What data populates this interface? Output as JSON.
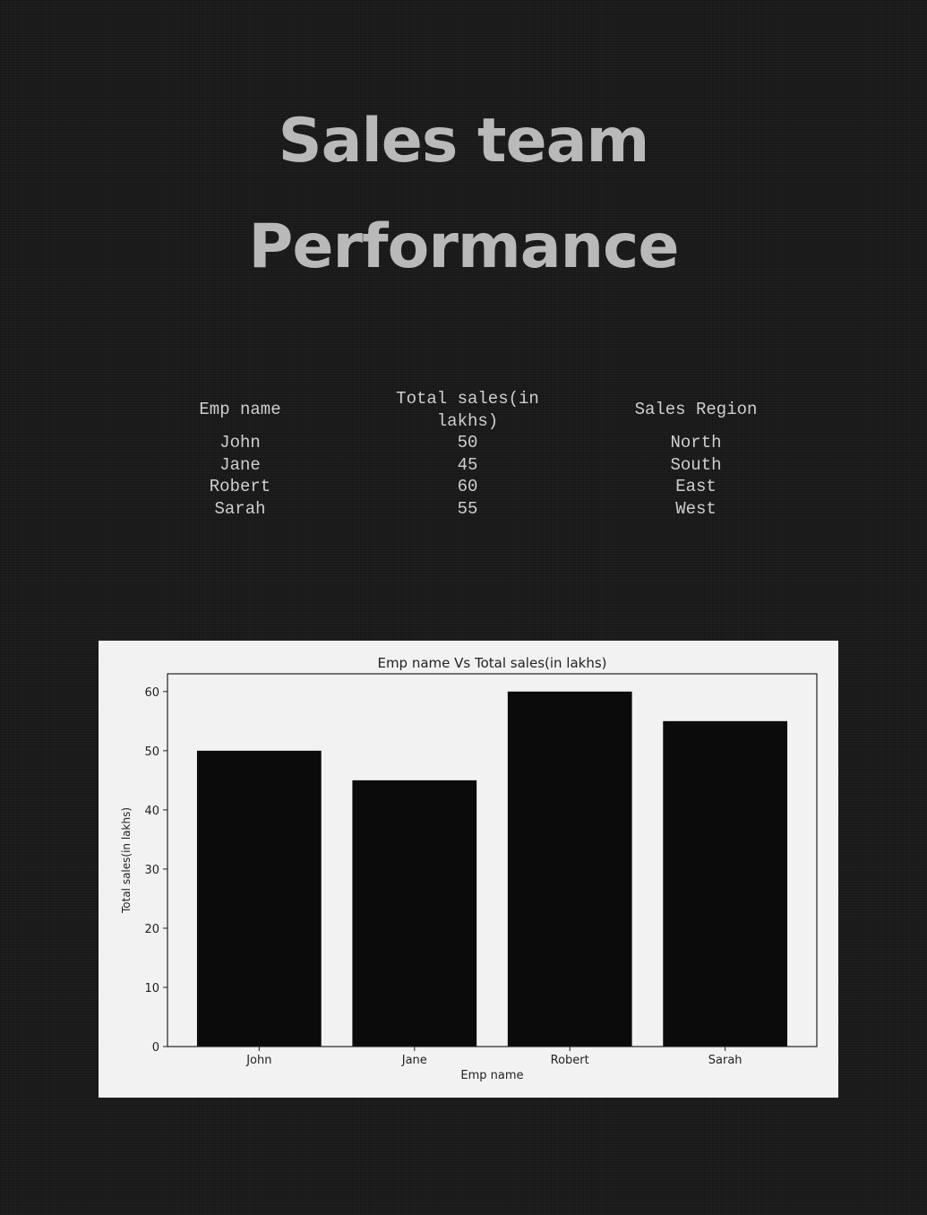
{
  "title": {
    "line1": "Sales team",
    "line2": "Performance"
  },
  "table": {
    "headers": [
      "Emp name",
      "Total sales(in",
      "lakhs)",
      "Sales Region"
    ],
    "rows": [
      [
        "John",
        "50",
        "North"
      ],
      [
        "Jane",
        "45",
        "South"
      ],
      [
        "Robert",
        "60",
        "East"
      ],
      [
        "Sarah",
        "55",
        "West"
      ]
    ]
  },
  "chart_data": {
    "type": "bar",
    "title": "Emp name Vs Total sales(in lakhs)",
    "xlabel": "Emp name",
    "ylabel": "Total sales(in lakhs)",
    "categories": [
      "John",
      "Jane",
      "Robert",
      "Sarah"
    ],
    "values": [
      50,
      45,
      60,
      55
    ],
    "ylim": [
      0,
      63
    ],
    "yticks": [
      0,
      10,
      20,
      30,
      40,
      50,
      60
    ],
    "grid": false,
    "bar_color": "#0b0b0b"
  }
}
